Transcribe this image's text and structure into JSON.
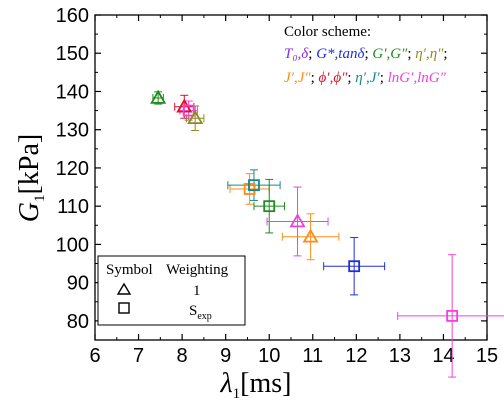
{
  "chart_data": {
    "type": "scatter",
    "xlabel": {
      "symbol": "λ",
      "sub": "1",
      "unit": "[ms]"
    },
    "ylabel": {
      "symbol": "G",
      "sub": "1",
      "unit": "[kPa]"
    },
    "xlim": [
      6,
      15
    ],
    "ylim": [
      75,
      160
    ],
    "xticks": [
      "6",
      "7",
      "8",
      "9",
      "10",
      "11",
      "12",
      "13",
      "14",
      "15"
    ],
    "yticks": [
      "80",
      "90",
      "100",
      "110",
      "120",
      "130",
      "140",
      "150",
      "160"
    ],
    "color_scheme": {
      "title": "Color scheme:",
      "row1": [
        {
          "label": "T₀,δ",
          "sep": ";",
          "color": "#8a2be2"
        },
        {
          "label": "G*,tanδ",
          "sep": ";",
          "color": "#1f2fd6"
        },
        {
          "label": "G′,G″",
          "sep": ";",
          "color": "#1e8c1e"
        },
        {
          "label": "η′,η″",
          "sep": ";",
          "color": "#8c8c1e"
        }
      ],
      "row2": [
        {
          "label": "J′,J″",
          "sep": ";",
          "color": "#ff8c1a"
        },
        {
          "label": "ϕ′,ϕ″",
          "sep": ";",
          "color": "#e0102a"
        },
        {
          "label": "η′,J′",
          "sep": ";",
          "color": "#168a8a"
        },
        {
          "label": "lnG′,lnG″",
          "sep": "",
          "color": "#f040e0"
        }
      ]
    },
    "legend": {
      "col1": "Symbol",
      "col2": "Weighting",
      "rows": [
        {
          "symbol": "triangle",
          "weighting": "1",
          "weighting_sub": ""
        },
        {
          "symbol": "square",
          "weighting": "S",
          "weighting_sub": "exp"
        }
      ]
    },
    "points": [
      {
        "x": 7.45,
        "y": 138.3,
        "xerr": 0.12,
        "yerr": 1.6,
        "marker": "triangle",
        "color": "#1e8c1e"
      },
      {
        "x": 8.05,
        "y": 136.0,
        "xerr": 0.22,
        "yerr": 3.0,
        "marker": "triangle",
        "color": "#e0102a"
      },
      {
        "x": 8.15,
        "y": 135.0,
        "xerr": 0.2,
        "yerr": 2.5,
        "marker": "square",
        "color": "#f040e0"
      },
      {
        "x": 8.3,
        "y": 133.0,
        "xerr": 0.2,
        "yerr": 3.2,
        "marker": "triangle",
        "color": "#8c8c1e"
      },
      {
        "x": 9.55,
        "y": 114.5,
        "xerr": 0.45,
        "yerr": 4.0,
        "marker": "square",
        "color": "#ff8c1a"
      },
      {
        "x": 9.65,
        "y": 115.5,
        "xerr": 0.6,
        "yerr": 4.0,
        "marker": "square",
        "color": "#168a8a"
      },
      {
        "x": 10.0,
        "y": 110.0,
        "xerr": 0.35,
        "yerr": 7.0,
        "marker": "square",
        "color": "#1e8c1e"
      },
      {
        "x": 10.65,
        "y": 106.0,
        "xerr": 0.7,
        "yerr": 9.0,
        "marker": "triangle",
        "color": "#f040e0"
      },
      {
        "x": 10.95,
        "y": 102.0,
        "xerr": 0.65,
        "yerr": 6.0,
        "marker": "triangle",
        "color": "#ff8c1a"
      },
      {
        "x": 11.95,
        "y": 94.3,
        "xerr": 0.7,
        "yerr": 7.5,
        "marker": "square",
        "color": "#1f2fd6"
      },
      {
        "x": 14.2,
        "y": 81.3,
        "xerr": 1.25,
        "yerr": 16.0,
        "marker": "square",
        "color": "#f040e0"
      }
    ]
  }
}
